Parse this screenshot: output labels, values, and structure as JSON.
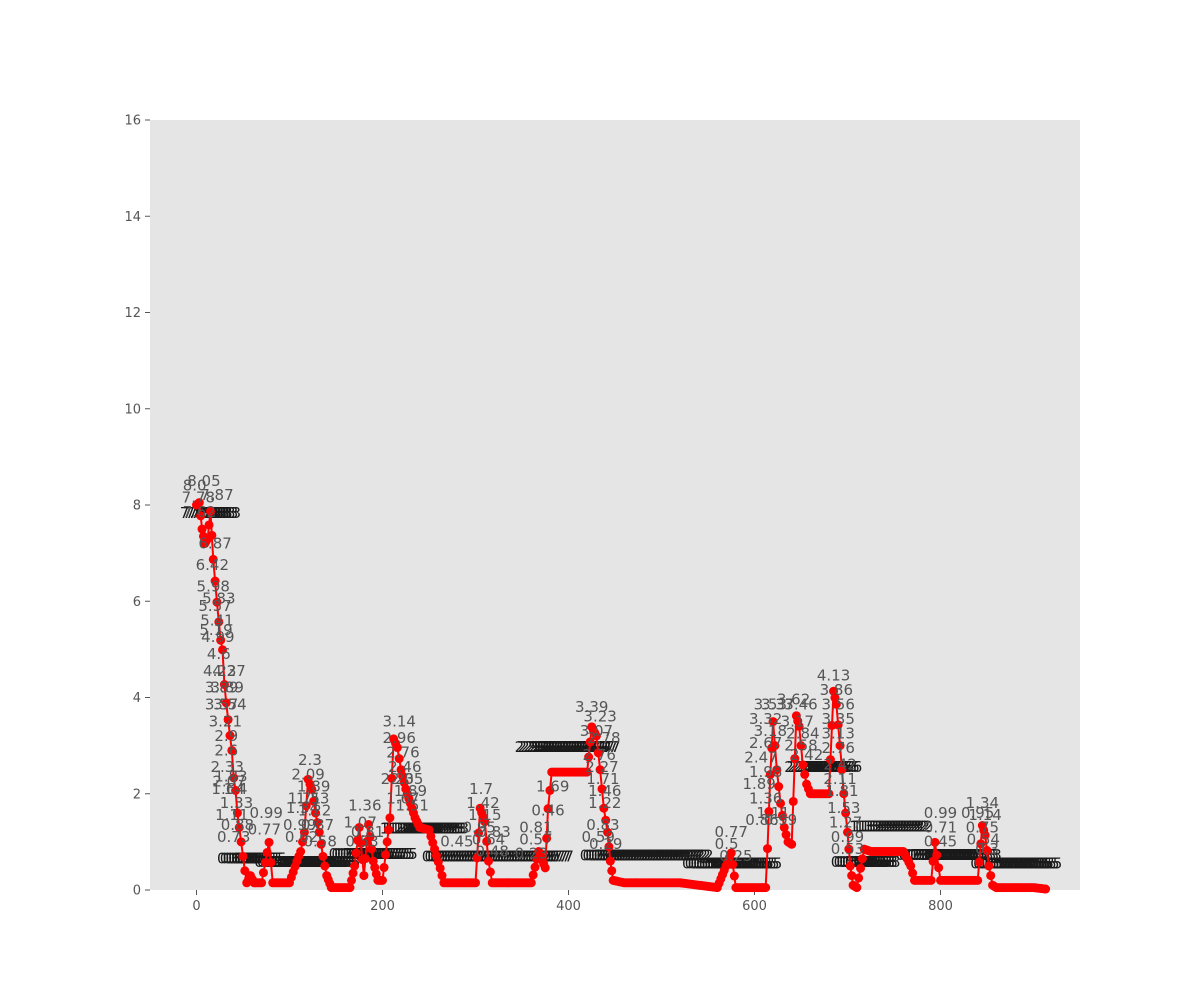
{
  "chart_data": {
    "type": "line",
    "title": "",
    "xlabel": "",
    "ylabel": "",
    "xlim": [
      -50,
      950
    ],
    "ylim": [
      0,
      16
    ],
    "x_ticks": [
      0,
      200,
      400,
      600,
      800
    ],
    "y_ticks": [
      0,
      2,
      4,
      6,
      8,
      10,
      12,
      14,
      16
    ],
    "grid": false,
    "background": "#e5e5e5",
    "series": [
      {
        "color": "#ff0000",
        "marker": "circle",
        "points": [
          [
            0,
            8.0
          ],
          [
            3,
            8.05
          ],
          [
            6,
            7.5
          ],
          [
            9,
            7.2
          ],
          [
            12,
            7.3
          ],
          [
            15,
            7.87
          ],
          [
            18,
            6.87
          ],
          [
            20,
            6.42
          ],
          [
            22,
            5.98
          ],
          [
            24,
            5.57
          ],
          [
            26,
            5.19
          ],
          [
            28,
            4.99
          ],
          [
            30,
            4.27
          ],
          [
            32,
            3.89
          ],
          [
            34,
            3.54
          ],
          [
            36,
            3.21
          ],
          [
            38,
            2.9
          ],
          [
            40,
            2.33
          ],
          [
            42,
            2.07
          ],
          [
            44,
            1.6
          ],
          [
            46,
            1.3
          ],
          [
            48,
            1.0
          ],
          [
            50,
            0.7
          ],
          [
            52,
            0.4
          ],
          [
            54,
            0.15
          ],
          [
            58,
            0.3
          ],
          [
            62,
            0.15
          ],
          [
            70,
            0.15
          ],
          [
            78,
            0.99
          ],
          [
            82,
            0.15
          ],
          [
            90,
            0.15
          ],
          [
            100,
            0.15
          ],
          [
            108,
            0.6
          ],
          [
            112,
            0.8
          ],
          [
            116,
            1.2
          ],
          [
            120,
            2.3
          ],
          [
            124,
            2.09
          ],
          [
            128,
            1.6
          ],
          [
            132,
            1.2
          ],
          [
            136,
            0.7
          ],
          [
            140,
            0.3
          ],
          [
            145,
            0.05
          ],
          [
            155,
            0.05
          ],
          [
            165,
            0.05
          ],
          [
            170,
            0.5
          ],
          [
            175,
            1.3
          ],
          [
            180,
            0.3
          ],
          [
            185,
            1.36
          ],
          [
            190,
            0.6
          ],
          [
            195,
            0.2
          ],
          [
            200,
            0.2
          ],
          [
            205,
            1.0
          ],
          [
            208,
            1.5
          ],
          [
            212,
            3.14
          ],
          [
            216,
            2.96
          ],
          [
            220,
            2.5
          ],
          [
            225,
            2.1
          ],
          [
            230,
            1.8
          ],
          [
            235,
            1.5
          ],
          [
            240,
            1.3
          ],
          [
            250,
            1.25
          ],
          [
            262,
            0.45
          ],
          [
            266,
            0.15
          ],
          [
            280,
            0.15
          ],
          [
            300,
            0.15
          ],
          [
            305,
            1.7
          ],
          [
            310,
            1.42
          ],
          [
            314,
            0.6
          ],
          [
            318,
            0.15
          ],
          [
            325,
            0.15
          ],
          [
            340,
            0.15
          ],
          [
            355,
            0.15
          ],
          [
            360,
            0.15
          ],
          [
            368,
            0.8
          ],
          [
            375,
            0.46
          ],
          [
            378,
            1.69
          ],
          [
            382,
            2.45
          ],
          [
            400,
            2.45
          ],
          [
            420,
            2.45
          ],
          [
            425,
            3.39
          ],
          [
            430,
            3.2
          ],
          [
            434,
            2.5
          ],
          [
            438,
            1.7
          ],
          [
            442,
            1.2
          ],
          [
            445,
            0.6
          ],
          [
            448,
            0.2
          ],
          [
            460,
            0.15
          ],
          [
            480,
            0.15
          ],
          [
            500,
            0.15
          ],
          [
            520,
            0.15
          ],
          [
            540,
            0.1
          ],
          [
            560,
            0.05
          ],
          [
            575,
            0.77
          ],
          [
            580,
            0.05
          ],
          [
            600,
            0.05
          ],
          [
            612,
            0.05
          ],
          [
            614,
            0.86
          ],
          [
            617,
            2.4
          ],
          [
            620,
            3.5
          ],
          [
            624,
            2.5
          ],
          [
            628,
            1.8
          ],
          [
            632,
            1.3
          ],
          [
            636,
            1.0
          ],
          [
            640,
            0.95
          ],
          [
            645,
            3.62
          ],
          [
            648,
            3.4
          ],
          [
            652,
            2.6
          ],
          [
            656,
            2.2
          ],
          [
            660,
            2.0
          ],
          [
            670,
            2.0
          ],
          [
            680,
            2.0
          ],
          [
            685,
            4.13
          ],
          [
            688,
            3.86
          ],
          [
            692,
            3.0
          ],
          [
            696,
            2.0
          ],
          [
            700,
            1.2
          ],
          [
            703,
            0.5
          ],
          [
            706,
            0.1
          ],
          [
            710,
            0.05
          ],
          [
            718,
            0.85
          ],
          [
            725,
            0.8
          ],
          [
            740,
            0.8
          ],
          [
            760,
            0.8
          ],
          [
            768,
            0.5
          ],
          [
            772,
            0.2
          ],
          [
            790,
            0.2
          ],
          [
            794,
            0.99
          ],
          [
            800,
            0.2
          ],
          [
            820,
            0.2
          ],
          [
            840,
            0.2
          ],
          [
            845,
            1.34
          ],
          [
            848,
            1.14
          ],
          [
            852,
            0.5
          ],
          [
            856,
            0.1
          ],
          [
            860,
            0.05
          ],
          [
            880,
            0.05
          ],
          [
            900,
            0.05
          ],
          [
            913,
            0.02
          ]
        ]
      },
      {
        "color": "#1a1a1a",
        "marker": "text",
        "segments": [
          {
            "x": [
              0,
              30
            ],
            "y": 7.83
          },
          {
            "x": [
              40,
              80
            ],
            "y": 0.65
          },
          {
            "x": [
              80,
              160
            ],
            "y": 0.58
          },
          {
            "x": [
              160,
              220
            ],
            "y": 0.75
          },
          {
            "x": [
              215,
              275
            ],
            "y": 1.28
          },
          {
            "x": [
              255,
              395
            ],
            "y": 0.7
          },
          {
            "x": [
              360,
              440
            ],
            "y": 2.97
          },
          {
            "x": [
              430,
              540
            ],
            "y": 0.72
          },
          {
            "x": [
              540,
              612
            ],
            "y": 0.55
          },
          {
            "x": [
              650,
              700
            ],
            "y": 2.56
          },
          {
            "x": [
              700,
              740
            ],
            "y": 0.58
          },
          {
            "x": [
              720,
              775
            ],
            "y": 1.32
          },
          {
            "x": [
              770,
              850
            ],
            "y": 0.73
          },
          {
            "x": [
              850,
              915
            ],
            "y": 0.55
          }
        ]
      }
    ],
    "annotations": [
      {
        "x": -2,
        "y": 8.3,
        "text": "8.0"
      },
      {
        "x": 8,
        "y": 8.4,
        "text": "8.05"
      },
      {
        "x": 2,
        "y": 8.05,
        "text": "7.78"
      },
      {
        "x": 22,
        "y": 8.1,
        "text": "7.87"
      },
      {
        "x": 3,
        "y": 7.75,
        "text": "7.62"
      },
      {
        "x": 20,
        "y": 7.1,
        "text": "6.87"
      },
      {
        "x": 17,
        "y": 6.65,
        "text": "6.42"
      },
      {
        "x": 18,
        "y": 6.2,
        "text": "5.98"
      },
      {
        "x": 24,
        "y": 5.95,
        "text": "5.83"
      },
      {
        "x": 20,
        "y": 5.8,
        "text": "5.57"
      },
      {
        "x": 22,
        "y": 5.5,
        "text": "5.41"
      },
      {
        "x": 21,
        "y": 5.3,
        "text": "5.19"
      },
      {
        "x": 23,
        "y": 5.15,
        "text": "4.99"
      },
      {
        "x": 24,
        "y": 4.8,
        "text": "4.6"
      },
      {
        "x": 25,
        "y": 4.45,
        "text": "4.23"
      },
      {
        "x": 35,
        "y": 4.45,
        "text": "4.27"
      },
      {
        "x": 27,
        "y": 4.1,
        "text": "3.89"
      },
      {
        "x": 33,
        "y": 4.1,
        "text": "3.89"
      },
      {
        "x": 27,
        "y": 3.75,
        "text": "3.57"
      },
      {
        "x": 36,
        "y": 3.75,
        "text": "3.54"
      },
      {
        "x": 31,
        "y": 3.4,
        "text": "3.21"
      },
      {
        "x": 32,
        "y": 3.1,
        "text": "2.9"
      },
      {
        "x": 32,
        "y": 2.8,
        "text": "2.6"
      },
      {
        "x": 33,
        "y": 2.45,
        "text": "2.33"
      },
      {
        "x": 35,
        "y": 2.15,
        "text": "2.07"
      },
      {
        "x": 37,
        "y": 2.25,
        "text": "1.83"
      },
      {
        "x": 34,
        "y": 2.0,
        "text": "1.64"
      },
      {
        "x": 42,
        "y": 2.0,
        "text": "1.4"
      },
      {
        "x": 43,
        "y": 1.7,
        "text": "1.33"
      },
      {
        "x": 38,
        "y": 1.45,
        "text": "1.11"
      },
      {
        "x": 75,
        "y": 1.5,
        "text": "0.99"
      },
      {
        "x": 44,
        "y": 1.25,
        "text": "0.88"
      },
      {
        "x": 40,
        "y": 1.0,
        "text": "0.73"
      },
      {
        "x": 73,
        "y": 1.15,
        "text": "0.77"
      },
      {
        "x": 122,
        "y": 2.6,
        "text": "2.3"
      },
      {
        "x": 120,
        "y": 2.3,
        "text": "2.09"
      },
      {
        "x": 126,
        "y": 2.05,
        "text": "1.89"
      },
      {
        "x": 116,
        "y": 1.8,
        "text": "1.71"
      },
      {
        "x": 125,
        "y": 1.8,
        "text": "1.53"
      },
      {
        "x": 114,
        "y": 1.6,
        "text": "1.34"
      },
      {
        "x": 127,
        "y": 1.55,
        "text": "1.22"
      },
      {
        "x": 111,
        "y": 1.25,
        "text": "0.99"
      },
      {
        "x": 130,
        "y": 1.25,
        "text": "0.87"
      },
      {
        "x": 113,
        "y": 1.0,
        "text": "0.62"
      },
      {
        "x": 133,
        "y": 0.9,
        "text": "0.58"
      },
      {
        "x": 181,
        "y": 1.65,
        "text": "1.36"
      },
      {
        "x": 176,
        "y": 1.3,
        "text": "1.07"
      },
      {
        "x": 184,
        "y": 1.1,
        "text": "0.81"
      },
      {
        "x": 178,
        "y": 0.9,
        "text": "0.53"
      },
      {
        "x": 218,
        "y": 3.4,
        "text": "3.14"
      },
      {
        "x": 218,
        "y": 3.05,
        "text": "2.96"
      },
      {
        "x": 222,
        "y": 2.75,
        "text": "2.76"
      },
      {
        "x": 224,
        "y": 2.45,
        "text": "2.46"
      },
      {
        "x": 216,
        "y": 2.2,
        "text": "2.23"
      },
      {
        "x": 226,
        "y": 2.2,
        "text": "2.05"
      },
      {
        "x": 230,
        "y": 1.95,
        "text": "1.89"
      },
      {
        "x": 222,
        "y": 1.8,
        "text": "1.67"
      },
      {
        "x": 232,
        "y": 1.65,
        "text": "1.51"
      },
      {
        "x": 280,
        "y": 0.9,
        "text": "0.45"
      },
      {
        "x": 306,
        "y": 2.0,
        "text": "1.7"
      },
      {
        "x": 308,
        "y": 1.7,
        "text": "1.42"
      },
      {
        "x": 310,
        "y": 1.45,
        "text": "1.15"
      },
      {
        "x": 304,
        "y": 1.2,
        "text": "0.95"
      },
      {
        "x": 320,
        "y": 1.1,
        "text": "0.83"
      },
      {
        "x": 314,
        "y": 0.95,
        "text": "0.64"
      },
      {
        "x": 318,
        "y": 0.7,
        "text": "0.48"
      },
      {
        "x": 365,
        "y": 1.2,
        "text": "0.81"
      },
      {
        "x": 378,
        "y": 1.55,
        "text": "0.46"
      },
      {
        "x": 365,
        "y": 0.95,
        "text": "0.57"
      },
      {
        "x": 360,
        "y": 0.65,
        "text": "0.23"
      },
      {
        "x": 383,
        "y": 2.05,
        "text": "1.69"
      },
      {
        "x": 425,
        "y": 3.7,
        "text": "3.39"
      },
      {
        "x": 434,
        "y": 3.5,
        "text": "3.23"
      },
      {
        "x": 430,
        "y": 3.2,
        "text": "3.07"
      },
      {
        "x": 438,
        "y": 3.05,
        "text": "2.78"
      },
      {
        "x": 433,
        "y": 2.7,
        "text": "2.76"
      },
      {
        "x": 436,
        "y": 2.45,
        "text": "2.27"
      },
      {
        "x": 437,
        "y": 2.2,
        "text": "1.71"
      },
      {
        "x": 439,
        "y": 1.95,
        "text": "1.46"
      },
      {
        "x": 439,
        "y": 1.7,
        "text": "1.22"
      },
      {
        "x": 437,
        "y": 1.25,
        "text": "0.83"
      },
      {
        "x": 432,
        "y": 1.0,
        "text": "0.59"
      },
      {
        "x": 440,
        "y": 0.85,
        "text": "0.29"
      },
      {
        "x": 575,
        "y": 1.1,
        "text": "0.77"
      },
      {
        "x": 570,
        "y": 0.85,
        "text": "0.5"
      },
      {
        "x": 580,
        "y": 0.6,
        "text": "0.25"
      },
      {
        "x": 617,
        "y": 3.75,
        "text": "3.53"
      },
      {
        "x": 625,
        "y": 3.75,
        "text": "3.37"
      },
      {
        "x": 612,
        "y": 3.45,
        "text": "3.32"
      },
      {
        "x": 617,
        "y": 3.2,
        "text": "3.18"
      },
      {
        "x": 612,
        "y": 2.95,
        "text": "2.67"
      },
      {
        "x": 607,
        "y": 2.65,
        "text": "2.47"
      },
      {
        "x": 612,
        "y": 2.35,
        "text": "1.98"
      },
      {
        "x": 605,
        "y": 2.1,
        "text": "1.89"
      },
      {
        "x": 612,
        "y": 1.8,
        "text": "1.36"
      },
      {
        "x": 620,
        "y": 1.5,
        "text": "1.11"
      },
      {
        "x": 608,
        "y": 1.35,
        "text": "0.86"
      },
      {
        "x": 628,
        "y": 1.35,
        "text": "0.99"
      },
      {
        "x": 642,
        "y": 3.85,
        "text": "3.62"
      },
      {
        "x": 650,
        "y": 3.75,
        "text": "3.46"
      },
      {
        "x": 646,
        "y": 3.4,
        "text": "3.17"
      },
      {
        "x": 652,
        "y": 3.15,
        "text": "2.84"
      },
      {
        "x": 650,
        "y": 2.9,
        "text": "2.58"
      },
      {
        "x": 656,
        "y": 2.7,
        "text": "2.42"
      },
      {
        "x": 685,
        "y": 4.35,
        "text": "4.13"
      },
      {
        "x": 688,
        "y": 4.05,
        "text": "3.86"
      },
      {
        "x": 690,
        "y": 3.75,
        "text": "3.56"
      },
      {
        "x": 690,
        "y": 3.45,
        "text": "3.35"
      },
      {
        "x": 690,
        "y": 3.15,
        "text": "3.13"
      },
      {
        "x": 690,
        "y": 2.85,
        "text": "2.76"
      },
      {
        "x": 692,
        "y": 2.5,
        "text": "2.42"
      },
      {
        "x": 692,
        "y": 2.2,
        "text": "2.11"
      },
      {
        "x": 694,
        "y": 1.95,
        "text": "1.81"
      },
      {
        "x": 696,
        "y": 1.6,
        "text": "1.53"
      },
      {
        "x": 698,
        "y": 1.3,
        "text": "1.27"
      },
      {
        "x": 700,
        "y": 1.0,
        "text": "0.99"
      },
      {
        "x": 700,
        "y": 0.75,
        "text": "0.53"
      },
      {
        "x": 800,
        "y": 1.5,
        "text": "0.99"
      },
      {
        "x": 800,
        "y": 1.2,
        "text": "0.71"
      },
      {
        "x": 800,
        "y": 0.9,
        "text": "0.45"
      },
      {
        "x": 845,
        "y": 1.7,
        "text": "1.34"
      },
      {
        "x": 848,
        "y": 1.45,
        "text": "1.14"
      },
      {
        "x": 840,
        "y": 1.5,
        "text": "0.95"
      },
      {
        "x": 845,
        "y": 1.2,
        "text": "0.75"
      },
      {
        "x": 846,
        "y": 0.95,
        "text": "0.54"
      },
      {
        "x": 850,
        "y": 0.75,
        "text": "0.3"
      }
    ]
  }
}
